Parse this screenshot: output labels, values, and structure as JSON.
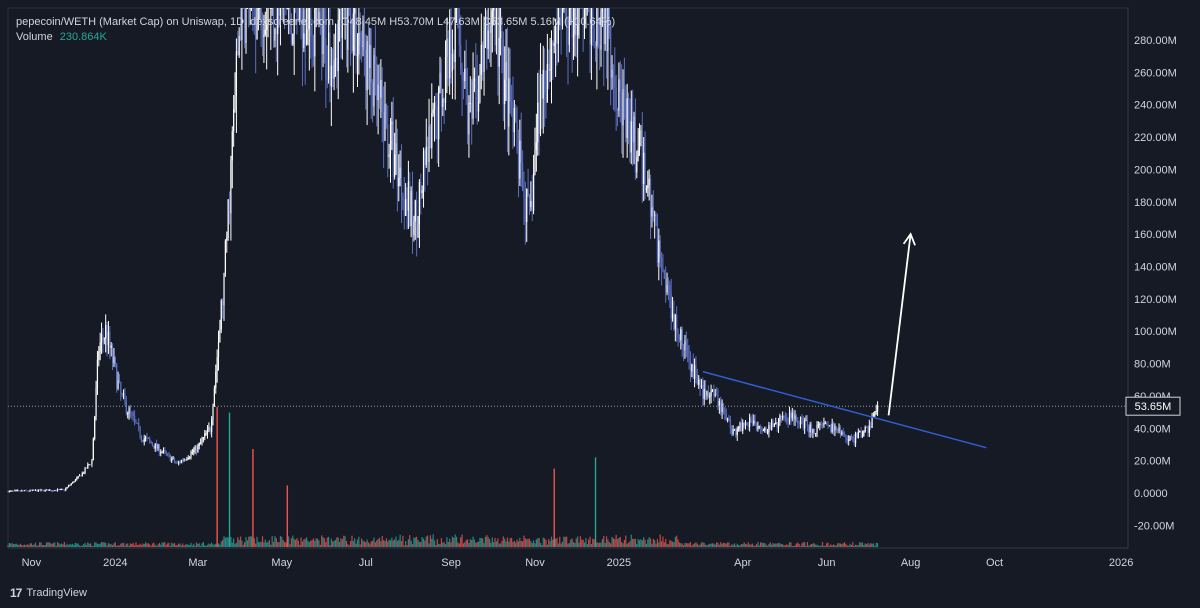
{
  "legend": {
    "title": "pepecoin/WETH (Market Cap) on Uniswap, 1D, dexscreener.com",
    "ohlc_text": "O48.45M H53.70M L47.63M C53.65M 5.16M (+10.64%)",
    "volume_label": "Volume",
    "volume_value": "230.864K"
  },
  "price_tag": "53.65M",
  "branding": "TradingView",
  "colors": {
    "background": "#161a25",
    "candle": "#ffffff",
    "candle_alt": "#5b6fc2",
    "trendline": "#2f5fd0",
    "arrow": "#ffffff",
    "vol_up": "#26a69a",
    "vol_down": "#ef5350",
    "axis_text": "#d1d4dc"
  },
  "chart_data": {
    "type": "candlestick",
    "y_axis": {
      "min": -20,
      "max": 290,
      "unit": "M",
      "tick_values": [
        280,
        260,
        240,
        220,
        200,
        180,
        160,
        140,
        120,
        100,
        80,
        60,
        40,
        20,
        0,
        -20
      ],
      "tick_labels": [
        "280.00M",
        "260.00M",
        "240.00M",
        "220.00M",
        "200.00M",
        "180.00M",
        "160.00M",
        "140.00M",
        "120.00M",
        "100.00M",
        "80.00M",
        "60.00M",
        "40.00M",
        "20.00M",
        "0.0000",
        "-20.00M"
      ]
    },
    "x_axis": {
      "labels": [
        "Nov",
        "2024",
        "Mar",
        "May",
        "Jul",
        "Sep",
        "Nov",
        "2025",
        "Apr",
        "Jun",
        "Aug",
        "Oct",
        "2026"
      ],
      "dates": [
        "2023-11-01",
        "2024-01-01",
        "2024-03-01",
        "2024-05-01",
        "2024-07-01",
        "2024-09-01",
        "2024-11-01",
        "2025-01-01",
        "2025-04-01",
        "2025-06-01",
        "2025-08-01",
        "2025-10-01",
        "2026-01-01"
      ],
      "range": [
        "2023-10-15",
        "2026-01-06"
      ]
    },
    "market_cap_path": [
      [
        "2023-10-15",
        1
      ],
      [
        "2023-11-25",
        2
      ],
      [
        "2023-12-08",
        12
      ],
      [
        "2023-12-15",
        20
      ],
      [
        "2023-12-20",
        90
      ],
      [
        "2023-12-25",
        100
      ],
      [
        "2024-01-05",
        60
      ],
      [
        "2024-01-20",
        35
      ],
      [
        "2024-02-05",
        25
      ],
      [
        "2024-02-15",
        18
      ],
      [
        "2024-03-01",
        28
      ],
      [
        "2024-03-10",
        40
      ],
      [
        "2024-03-20",
        130
      ],
      [
        "2024-04-01",
        300
      ],
      [
        "2024-04-15",
        310
      ],
      [
        "2024-05-01",
        300
      ],
      [
        "2024-05-20",
        300
      ],
      [
        "2024-06-01",
        270
      ],
      [
        "2024-06-20",
        300
      ],
      [
        "2024-07-10",
        240
      ],
      [
        "2024-07-25",
        200
      ],
      [
        "2024-08-05",
        165
      ],
      [
        "2024-08-25",
        250
      ],
      [
        "2024-09-05",
        300
      ],
      [
        "2024-09-15",
        225
      ],
      [
        "2024-10-01",
        300
      ],
      [
        "2024-10-15",
        230
      ],
      [
        "2024-10-28",
        165
      ],
      [
        "2024-11-05",
        250
      ],
      [
        "2024-11-20",
        300
      ],
      [
        "2024-12-10",
        300
      ],
      [
        "2024-12-22",
        300
      ],
      [
        "2025-01-05",
        230
      ],
      [
        "2025-01-20",
        200
      ],
      [
        "2025-02-01",
        140
      ],
      [
        "2025-02-15",
        95
      ],
      [
        "2025-03-01",
        65
      ],
      [
        "2025-03-15",
        55
      ],
      [
        "2025-03-25",
        38
      ],
      [
        "2025-04-05",
        45
      ],
      [
        "2025-04-20",
        40
      ],
      [
        "2025-05-05",
        48
      ],
      [
        "2025-05-20",
        40
      ],
      [
        "2025-06-05",
        40
      ],
      [
        "2025-06-20",
        33
      ],
      [
        "2025-07-01",
        40
      ],
      [
        "2025-07-08",
        53.65
      ]
    ],
    "last_close": 53.65,
    "trendline": {
      "start": [
        "2025-03-03",
        75
      ],
      "end": [
        "2025-09-25",
        28
      ]
    },
    "annotation_arrow": {
      "start": [
        "2025-07-16",
        48
      ],
      "end": [
        "2025-08-01",
        160
      ]
    },
    "volume_spikes": [
      [
        "2024-03-15",
        50,
        "down"
      ],
      [
        "2024-03-24",
        48,
        "up"
      ],
      [
        "2024-04-10",
        35,
        "down"
      ],
      [
        "2024-05-05",
        22,
        "down"
      ],
      [
        "2024-11-15",
        28,
        "down"
      ],
      [
        "2024-12-15",
        32,
        "up"
      ]
    ]
  }
}
